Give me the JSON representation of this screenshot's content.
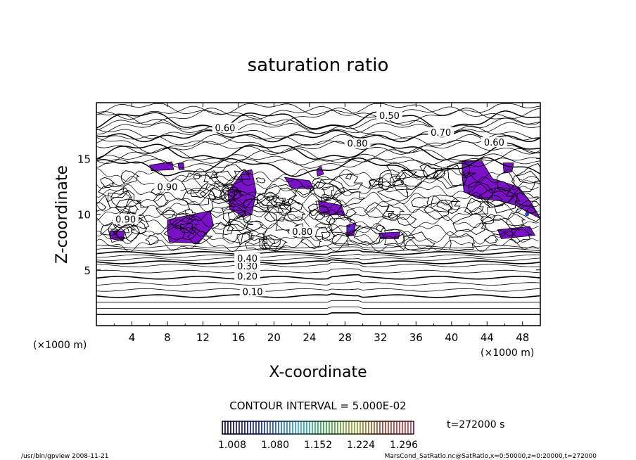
{
  "chart_data": {
    "type": "contour",
    "title": "saturation ratio",
    "xlabel": "X-coordinate",
    "ylabel": "Z-coordinate",
    "x_unit_label": "(×1000 m)",
    "z_unit_label": "(×1000 m)",
    "x_ticks": [
      4,
      8,
      12,
      16,
      20,
      24,
      28,
      32,
      36,
      40,
      44,
      48
    ],
    "z_ticks": [
      5,
      10,
      15
    ],
    "xlim": [
      0,
      50
    ],
    "zlim": [
      0,
      20
    ],
    "contour_interval_label": "CONTOUR INTERVAL = 5.000E-02",
    "contour_labels": [
      {
        "text": "0.10",
        "x": 17.6,
        "z": 3.0
      },
      {
        "text": "0.20",
        "x": 17.0,
        "z": 4.4
      },
      {
        "text": "0.30",
        "x": 17.0,
        "z": 5.3
      },
      {
        "text": "0.40",
        "x": 17.0,
        "z": 6.0
      },
      {
        "text": "0.50",
        "x": 33.0,
        "z": 18.8
      },
      {
        "text": "0.60",
        "x": 14.5,
        "z": 17.7
      },
      {
        "text": "0.70",
        "x": 38.8,
        "z": 17.3
      },
      {
        "text": "0.60",
        "x": 44.8,
        "z": 16.4
      },
      {
        "text": "0.80",
        "x": 29.4,
        "z": 16.3
      },
      {
        "text": "0.90",
        "x": 8.0,
        "z": 12.4
      },
      {
        "text": "0.90",
        "x": 3.3,
        "z": 9.5
      },
      {
        "text": "0.80",
        "x": 23.2,
        "z": 8.4
      }
    ],
    "supersaturated_regions_shaded_above": 1.0,
    "colorbar": {
      "tick_labels": [
        "1.008",
        "1.080",
        "1.152",
        "1.224",
        "1.296"
      ],
      "min": 1.008,
      "max": 1.296
    },
    "time_label": "t=272000 s",
    "colors": {
      "shade_main": "#7a10c8",
      "shade_blue": "#3040d8",
      "contour_line": "#000000"
    }
  },
  "footer": {
    "left": "/usr/bin/gpview   2008-11-21",
    "right": "MarsCond_SatRatio.nc@SatRatio,x=0:50000,z=0:20000,t=272000"
  }
}
